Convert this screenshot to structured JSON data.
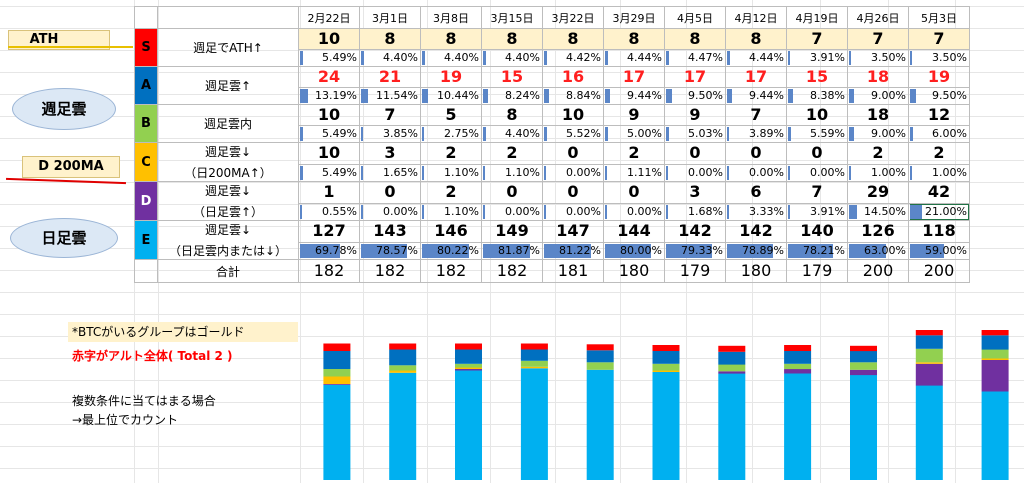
{
  "dates": [
    "2月22日",
    "3月1日",
    "3月8日",
    "3月15日",
    "3月22日",
    "3月29日",
    "4月5日",
    "4月12日",
    "4月19日",
    "4月26日",
    "5月3日"
  ],
  "rows": [
    {
      "letter": "S",
      "color": "#ff0000",
      "text_color": "#000000",
      "label1": "週足でATH↑",
      "label2": "",
      "highlight": true,
      "red_values": false,
      "values": [
        "10",
        "8",
        "8",
        "8",
        "8",
        "8",
        "8",
        "8",
        "7",
        "7",
        "7"
      ],
      "pcts": [
        "5.49%",
        "4.40%",
        "4.40%",
        "4.40%",
        "4.42%",
        "4.44%",
        "4.47%",
        "4.44%",
        "3.91%",
        "3.50%",
        "3.50%"
      ]
    },
    {
      "letter": "A",
      "color": "#0070c0",
      "text_color": "#000000",
      "label1": "週足雲↑",
      "label2": "",
      "highlight": false,
      "red_values": true,
      "values": [
        "24",
        "21",
        "19",
        "15",
        "16",
        "17",
        "17",
        "17",
        "15",
        "18",
        "19"
      ],
      "pcts": [
        "13.19%",
        "11.54%",
        "10.44%",
        "8.24%",
        "8.84%",
        "9.44%",
        "9.50%",
        "9.44%",
        "8.38%",
        "9.00%",
        "9.50%"
      ]
    },
    {
      "letter": "B",
      "color": "#92d050",
      "text_color": "#000000",
      "label1": "週足雲内",
      "label2": "",
      "highlight": false,
      "red_values": false,
      "values": [
        "10",
        "7",
        "5",
        "8",
        "10",
        "9",
        "9",
        "7",
        "10",
        "18",
        "12"
      ],
      "pcts": [
        "5.49%",
        "3.85%",
        "2.75%",
        "4.40%",
        "5.52%",
        "5.00%",
        "5.03%",
        "3.89%",
        "5.59%",
        "9.00%",
        "6.00%"
      ]
    },
    {
      "letter": "C",
      "color": "#ffc000",
      "text_color": "#000000",
      "label1": "週足雲↓",
      "label2": "（日200MA↑）",
      "highlight": false,
      "red_values": false,
      "values": [
        "10",
        "3",
        "2",
        "2",
        "0",
        "2",
        "0",
        "0",
        "0",
        "2",
        "2"
      ],
      "pcts": [
        "5.49%",
        "1.65%",
        "1.10%",
        "1.10%",
        "0.00%",
        "1.11%",
        "0.00%",
        "0.00%",
        "0.00%",
        "1.00%",
        "1.00%"
      ]
    },
    {
      "letter": "D",
      "color": "#7030a0",
      "text_color": "#ffffff",
      "label1": "週足雲↓",
      "label2": "（日足雲↑）",
      "highlight": false,
      "red_values": false,
      "values": [
        "1",
        "0",
        "2",
        "0",
        "0",
        "0",
        "3",
        "6",
        "7",
        "29",
        "42"
      ],
      "pcts": [
        "0.55%",
        "0.00%",
        "1.10%",
        "0.00%",
        "0.00%",
        "0.00%",
        "1.68%",
        "3.33%",
        "3.91%",
        "14.50%",
        "21.00%"
      ]
    },
    {
      "letter": "E",
      "color": "#00b0f0",
      "text_color": "#000000",
      "label1": "週足雲↓",
      "label2": "（日足雲内または↓）",
      "highlight": false,
      "red_values": false,
      "values": [
        "127",
        "143",
        "146",
        "149",
        "147",
        "144",
        "142",
        "142",
        "140",
        "126",
        "118"
      ],
      "pcts": [
        "69.78%",
        "78.57%",
        "80.22%",
        "81.87%",
        "81.22%",
        "80.00%",
        "79.33%",
        "78.89%",
        "78.21%",
        "63.00%",
        "59.00%"
      ]
    }
  ],
  "totals": {
    "label": "合計",
    "values": [
      "182",
      "182",
      "182",
      "182",
      "181",
      "180",
      "179",
      "180",
      "179",
      "200",
      "200"
    ]
  },
  "callouts": {
    "ath": "ATH",
    "weekly_cloud": "週足雲",
    "ma200": "D 200MA",
    "daily_cloud": "日足雲"
  },
  "notes": {
    "btc_gold": "*BTCがいるグループはゴールド",
    "red_alt": "赤字がアルト全体( Total 2 )",
    "multi1": "複数条件に当てはまる場合",
    "multi2": "→最上位でカウント"
  },
  "chart_data": {
    "type": "bar",
    "stacked": true,
    "categories": [
      "2月22日",
      "3月1日",
      "3月8日",
      "3月15日",
      "3月22日",
      "3月29日",
      "4月5日",
      "4月12日",
      "4月19日",
      "4月26日",
      "5月3日"
    ],
    "series": [
      {
        "name": "E",
        "color": "#00b0f0",
        "values": [
          127,
          143,
          146,
          149,
          147,
          144,
          142,
          142,
          140,
          126,
          118
        ]
      },
      {
        "name": "D",
        "color": "#7030a0",
        "values": [
          1,
          0,
          2,
          0,
          0,
          0,
          3,
          6,
          7,
          29,
          42
        ]
      },
      {
        "name": "C",
        "color": "#ffc000",
        "values": [
          10,
          3,
          2,
          2,
          0,
          2,
          0,
          0,
          0,
          2,
          2
        ]
      },
      {
        "name": "B",
        "color": "#92d050",
        "values": [
          10,
          7,
          5,
          8,
          10,
          9,
          9,
          7,
          10,
          18,
          12
        ]
      },
      {
        "name": "A",
        "color": "#0070c0",
        "values": [
          24,
          21,
          19,
          15,
          16,
          17,
          17,
          17,
          15,
          18,
          19
        ]
      },
      {
        "name": "S",
        "color": "#ff0000",
        "values": [
          10,
          8,
          8,
          8,
          8,
          8,
          8,
          8,
          7,
          7,
          7
        ]
      }
    ]
  }
}
